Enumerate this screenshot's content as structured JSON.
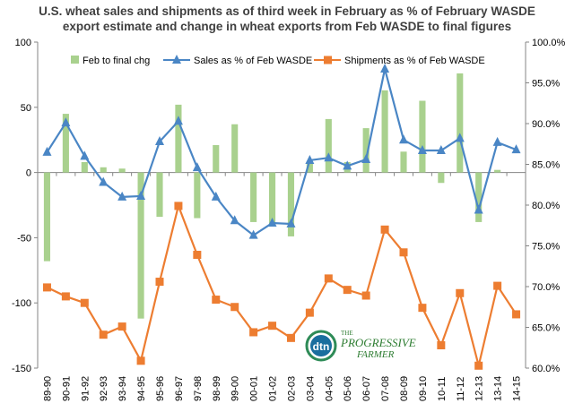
{
  "chart_data": {
    "type": "bar+line",
    "title_lines": [
      "U.S. wheat sales and shipments as of third week in February as % of February WASDE",
      "export estimate and change in wheat exports from Feb WASDE to final figures"
    ],
    "categories": [
      "89-90",
      "90-91",
      "91-92",
      "92-93",
      "93-94",
      "94-95",
      "95-96",
      "96-97",
      "97-98",
      "98-99",
      "99-00",
      "00-01",
      "01-02",
      "02-03",
      "03-04",
      "04-05",
      "05-06",
      "06-07",
      "07-08",
      "08-09",
      "09-10",
      "10-11",
      "11-12",
      "12-13",
      "13-14",
      "14-15"
    ],
    "left_axis": {
      "min": -150,
      "max": 100,
      "ticks": [
        100,
        50,
        0,
        -50,
        -100,
        -150
      ]
    },
    "right_axis": {
      "min": 0.6,
      "max": 1.0,
      "ticks": [
        "100.0%",
        "95.0%",
        "90.0%",
        "85.0%",
        "80.0%",
        "75.0%",
        "70.0%",
        "65.0%",
        "60.0%"
      ]
    },
    "series": [
      {
        "name": "Feb to final chg",
        "type": "bar",
        "axis": "left",
        "color": "#a9d18e",
        "values": [
          -68,
          45,
          8,
          4,
          3,
          -112,
          -34,
          52,
          -35,
          21,
          37,
          -38,
          -40,
          -49,
          8,
          41,
          8,
          34,
          63,
          16,
          55,
          -8,
          76,
          -38,
          2,
          0
        ]
      },
      {
        "name": "Sales as % of Feb WASDE",
        "type": "line",
        "axis": "right",
        "color": "#4a86c5",
        "values": [
          0.865,
          0.901,
          0.86,
          0.828,
          0.81,
          0.811,
          0.878,
          0.903,
          0.846,
          0.81,
          0.781,
          0.763,
          0.778,
          0.777,
          0.855,
          0.858,
          0.848,
          0.856,
          0.967,
          0.88,
          0.867,
          0.867,
          0.882,
          0.794,
          0.877,
          0.868
        ]
      },
      {
        "name": "Shipments as % of Feb WASDE",
        "type": "line",
        "axis": "right",
        "color": "#ed7d31",
        "values": [
          0.699,
          0.688,
          0.68,
          0.641,
          0.651,
          0.609,
          0.706,
          0.799,
          0.739,
          0.684,
          0.675,
          0.644,
          0.652,
          0.637,
          0.668,
          0.71,
          0.696,
          0.689,
          0.77,
          0.742,
          0.674,
          0.628,
          0.692,
          0.603,
          0.701,
          0.666
        ]
      }
    ],
    "legend": "top",
    "grid": false
  },
  "logo": {
    "brand": "dtn",
    "line1": "THE",
    "line2": "PROGRESSIVE",
    "line3": "FARMER"
  }
}
